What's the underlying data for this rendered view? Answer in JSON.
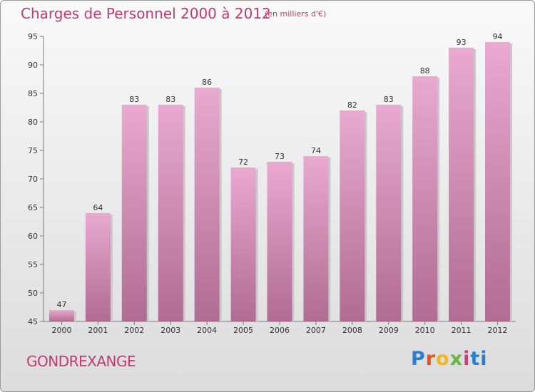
{
  "header": {
    "title": "Charges de Personnel 2000 à 2012",
    "subtitle": "(en milliers d'€)"
  },
  "footer": {
    "commune": "GONDREXANGE",
    "logo_text": "Proxiti"
  },
  "colors": {
    "accent": "#c23a6e",
    "bar_top": "#e9a9d0",
    "bar_bottom": "#b06c93"
  },
  "chart_data": {
    "type": "bar",
    "title": "Charges de Personnel 2000 à 2012",
    "subtitle": "(en milliers d'€)",
    "xlabel": "",
    "ylabel": "",
    "categories": [
      "2000",
      "2001",
      "2002",
      "2003",
      "2004",
      "2005",
      "2006",
      "2007",
      "2008",
      "2009",
      "2010",
      "2011",
      "2012"
    ],
    "values": [
      47,
      64,
      83,
      83,
      86,
      72,
      73,
      74,
      82,
      83,
      88,
      93,
      94
    ],
    "ylim": [
      45,
      95
    ],
    "yticks": [
      45,
      50,
      55,
      60,
      65,
      70,
      75,
      80,
      85,
      90,
      95
    ],
    "grid": false,
    "data_labels": true
  }
}
